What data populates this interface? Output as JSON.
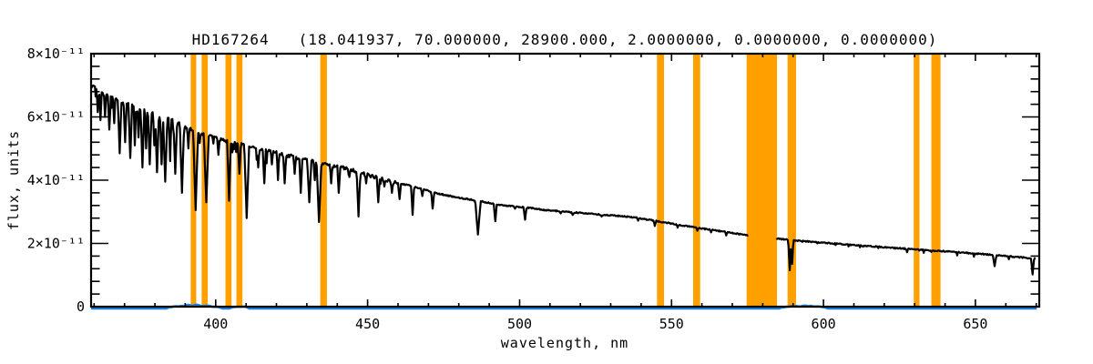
{
  "chart_data": {
    "type": "line",
    "title": "HD167264   (18.041937, 70.000000, 28900.000, 2.0000000, 0.0000000, 0.0000000)",
    "xlabel": "wavelength, nm",
    "ylabel": "flux, units",
    "xlim": [
      359,
      671
    ],
    "ylim": [
      0,
      8e-11
    ],
    "grid": false,
    "legend": "none",
    "x_ticks": {
      "major": [
        400,
        450,
        500,
        550,
        600,
        650
      ],
      "labels": [
        "400",
        "450",
        "500",
        "550",
        "600",
        "650"
      ],
      "minor_step": 10
    },
    "y_ticks": {
      "major_e11": [
        0,
        2,
        4,
        6,
        8
      ],
      "labels": [
        "0",
        "2×10⁻¹¹",
        "4×10⁻¹¹",
        "6×10⁻¹¹",
        "8×10⁻¹¹"
      ],
      "minor_step_e11": 0.4
    },
    "colors": {
      "spectrum": "#000000",
      "baseline": "#1c7fde",
      "band": "#ffa000",
      "axis": "#000000",
      "text": "#000000",
      "background": "#ffffff"
    },
    "bands_nm": [
      [
        391.8,
        393.6
      ],
      [
        395.4,
        397.4
      ],
      [
        403.2,
        405.2
      ],
      [
        406.8,
        408.8
      ],
      [
        434.4,
        436.6
      ],
      [
        545.2,
        547.5
      ],
      [
        557.1,
        559.4
      ],
      [
        574.7,
        584.7
      ],
      [
        588.2,
        591.0
      ],
      [
        629.7,
        631.6
      ],
      [
        635.5,
        638.5
      ]
    ],
    "spectrum": {
      "units_e11": true,
      "gap_nm": [
        575.3,
        584.5
      ],
      "continuum_e11": [
        [
          359,
          7.0
        ],
        [
          362,
          6.8
        ],
        [
          366,
          6.62
        ],
        [
          370,
          6.45
        ],
        [
          374,
          6.3
        ],
        [
          378,
          6.15
        ],
        [
          382,
          6.0
        ],
        [
          386,
          5.88
        ],
        [
          390,
          5.68
        ],
        [
          394,
          5.5
        ],
        [
          398,
          5.38
        ],
        [
          402,
          5.28
        ],
        [
          406,
          5.18
        ],
        [
          410,
          5.08
        ],
        [
          414,
          4.98
        ],
        [
          418,
          4.9
        ],
        [
          423,
          4.8
        ],
        [
          428,
          4.68
        ],
        [
          433,
          4.58
        ],
        [
          438,
          4.47
        ],
        [
          443,
          4.37
        ],
        [
          448,
          4.22
        ],
        [
          453,
          4.08
        ],
        [
          458,
          3.95
        ],
        [
          463,
          3.85
        ],
        [
          468,
          3.72
        ],
        [
          473,
          3.58
        ],
        [
          478,
          3.48
        ],
        [
          483,
          3.4
        ],
        [
          488,
          3.32
        ],
        [
          493,
          3.22
        ],
        [
          498,
          3.17
        ],
        [
          503,
          3.13
        ],
        [
          508,
          3.06
        ],
        [
          513,
          3.02
        ],
        [
          518,
          2.98
        ],
        [
          523,
          2.94
        ],
        [
          528,
          2.9
        ],
        [
          533,
          2.87
        ],
        [
          538,
          2.82
        ],
        [
          543,
          2.74
        ],
        [
          548,
          2.66
        ],
        [
          553,
          2.58
        ],
        [
          558,
          2.5
        ],
        [
          563,
          2.43
        ],
        [
          568,
          2.36
        ],
        [
          572,
          2.3
        ],
        [
          575.3,
          2.26
        ],
        [
          584.5,
          2.15
        ],
        [
          590,
          2.1
        ],
        [
          595,
          2.06
        ],
        [
          600,
          2.02
        ],
        [
          610,
          1.95
        ],
        [
          620,
          1.88
        ],
        [
          630,
          1.81
        ],
        [
          640,
          1.75
        ],
        [
          650,
          1.68
        ],
        [
          660,
          1.6
        ],
        [
          669.8,
          1.52
        ]
      ],
      "absorption_lines_e11": [
        [
          361.2,
          6.15,
          0.4
        ],
        [
          362.1,
          5.9,
          0.4
        ],
        [
          363.6,
          6.0,
          0.4
        ],
        [
          365.0,
          5.6,
          0.5
        ],
        [
          366.6,
          5.8,
          0.4
        ],
        [
          368.4,
          4.85,
          0.6
        ],
        [
          370.2,
          5.2,
          0.5
        ],
        [
          371.9,
          4.7,
          0.6
        ],
        [
          373.4,
          5.1,
          0.4
        ],
        [
          374.6,
          5.35,
          0.4
        ],
        [
          375.9,
          4.4,
          0.6
        ],
        [
          377.1,
          5.0,
          0.4
        ],
        [
          378.3,
          4.5,
          0.6
        ],
        [
          379.8,
          5.1,
          0.4
        ],
        [
          380.7,
          4.25,
          0.6
        ],
        [
          382.2,
          4.5,
          0.5
        ],
        [
          383.4,
          3.95,
          0.7
        ],
        [
          385.0,
          4.6,
          0.4
        ],
        [
          386.7,
          4.2,
          0.6
        ],
        [
          388.9,
          3.6,
          0.7
        ],
        [
          391.0,
          5.0,
          0.35
        ],
        [
          393.4,
          3.05,
          0.8
        ],
        [
          396.9,
          3.3,
          0.8
        ],
        [
          400.9,
          4.8,
          0.4
        ],
        [
          404.4,
          3.35,
          0.6
        ],
        [
          407.8,
          4.2,
          0.5
        ],
        [
          410.2,
          2.8,
          0.8
        ],
        [
          414.0,
          4.4,
          0.4
        ],
        [
          416.0,
          3.9,
          0.5
        ],
        [
          418.5,
          4.5,
          0.35
        ],
        [
          420.5,
          4.0,
          0.4
        ],
        [
          422.7,
          3.9,
          0.5
        ],
        [
          426.0,
          4.2,
          0.4
        ],
        [
          428.0,
          3.6,
          0.5
        ],
        [
          430.8,
          3.3,
          0.7
        ],
        [
          432.6,
          4.0,
          0.4
        ],
        [
          434.0,
          2.68,
          0.8
        ],
        [
          438.0,
          3.9,
          0.4
        ],
        [
          440.5,
          3.6,
          0.5
        ],
        [
          444.0,
          4.1,
          0.35
        ],
        [
          447.0,
          2.85,
          0.6
        ],
        [
          449.5,
          3.9,
          0.35
        ],
        [
          453.5,
          3.3,
          0.5
        ],
        [
          455.5,
          3.8,
          0.35
        ],
        [
          458.0,
          3.6,
          0.4
        ],
        [
          460.5,
          3.4,
          0.5
        ],
        [
          464.8,
          2.9,
          0.5
        ],
        [
          468.0,
          3.5,
          0.4
        ],
        [
          471.4,
          3.1,
          0.5
        ],
        [
          474.5,
          3.6,
          0.35
        ],
        [
          478.0,
          3.5,
          0.35
        ],
        [
          481.5,
          3.4,
          0.4
        ],
        [
          486.3,
          2.28,
          0.9
        ],
        [
          489.0,
          3.3,
          0.35
        ],
        [
          492.0,
          2.7,
          0.5
        ],
        [
          495.5,
          3.2,
          0.35
        ],
        [
          498.5,
          3.1,
          0.4
        ],
        [
          501.8,
          2.75,
          0.5
        ],
        [
          508.0,
          3.1,
          0.35
        ],
        [
          513.5,
          2.95,
          0.4
        ],
        [
          517.5,
          2.9,
          0.5
        ],
        [
          522.0,
          3.0,
          0.35
        ],
        [
          527.0,
          2.85,
          0.4
        ],
        [
          532.5,
          2.9,
          0.35
        ],
        [
          539.0,
          2.72,
          0.35
        ],
        [
          544.5,
          2.55,
          0.4
        ],
        [
          552.0,
          2.5,
          0.35
        ],
        [
          558.5,
          2.4,
          0.35
        ],
        [
          563.0,
          2.35,
          0.35
        ],
        [
          568.0,
          2.25,
          0.35
        ],
        [
          588.9,
          1.15,
          0.5
        ],
        [
          589.7,
          1.35,
          0.4
        ],
        [
          593.0,
          2.05,
          0.25
        ],
        [
          598.0,
          2.0,
          0.25
        ],
        [
          604.0,
          1.95,
          0.25
        ],
        [
          612.0,
          1.88,
          0.25
        ],
        [
          618.0,
          1.85,
          0.25
        ],
        [
          627.5,
          1.72,
          0.3
        ],
        [
          633.0,
          1.7,
          0.25
        ],
        [
          644.0,
          1.62,
          0.25
        ],
        [
          649.5,
          1.58,
          0.25
        ],
        [
          656.3,
          1.28,
          0.6
        ],
        [
          661.0,
          1.5,
          0.25
        ],
        [
          668.8,
          1.02,
          0.5
        ]
      ],
      "noise_e11": {
        "blue_region_limit_nm": 460,
        "blue_amp": 0.055,
        "red_amp": 0.018
      }
    },
    "baseline_series": {
      "description": "near-zero flux trace along x-axis",
      "level_e11": 0.0,
      "bumps": [
        [
          384,
          402,
          0.1
        ],
        [
          405,
          411,
          0.05
        ],
        [
          586,
          601,
          0.08
        ]
      ]
    }
  }
}
